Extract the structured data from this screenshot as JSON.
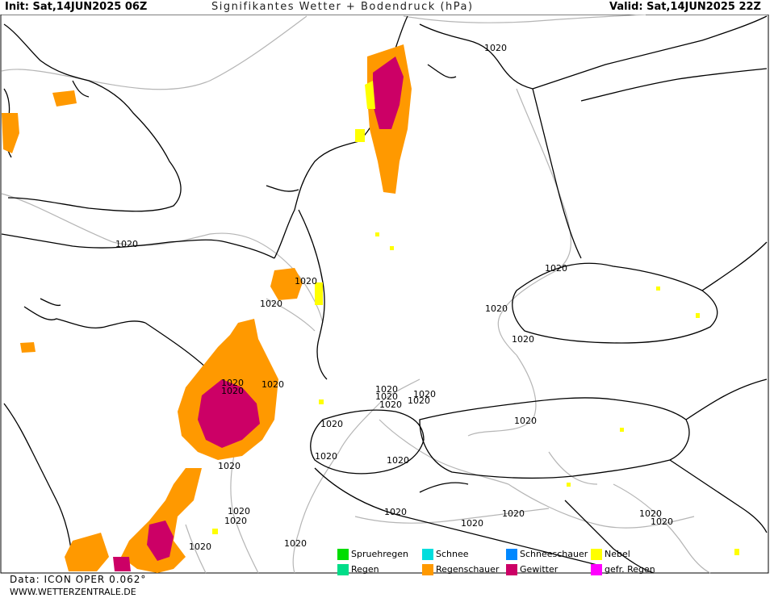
{
  "header": {
    "init": "Init: Sat,14JUN2025 06Z",
    "title": "Signifikantes Wetter + Bodendruck (hPa)",
    "valid": "Valid: Sat,14JUN2025 22Z"
  },
  "isobar_label": "1020",
  "legend": [
    {
      "label": "Spruehregen",
      "color": "#00dd00"
    },
    {
      "label": "Regen",
      "color": "#00dd88"
    },
    {
      "label": "Schnee",
      "color": "#00dddd"
    },
    {
      "label": "Regenschauer",
      "color": "#ff9900"
    },
    {
      "label": "Schneeschauer",
      "color": "#0088ff"
    },
    {
      "label": "Gewitter",
      "color": "#cc0066"
    },
    {
      "label": "Nebel",
      "color": "#ffff00"
    },
    {
      "label": "gefr. Regen",
      "color": "#ff00ff"
    }
  ],
  "footer": {
    "data": "Data: ICON OPER 0.062°",
    "site": "WWW.WETTERZENTRALE.DE"
  },
  "colors": {
    "coast": "#000000",
    "isobar": "#b0b0b0",
    "showers": "#ff9900",
    "thunder": "#cc0066",
    "fog": "#ffff00"
  }
}
